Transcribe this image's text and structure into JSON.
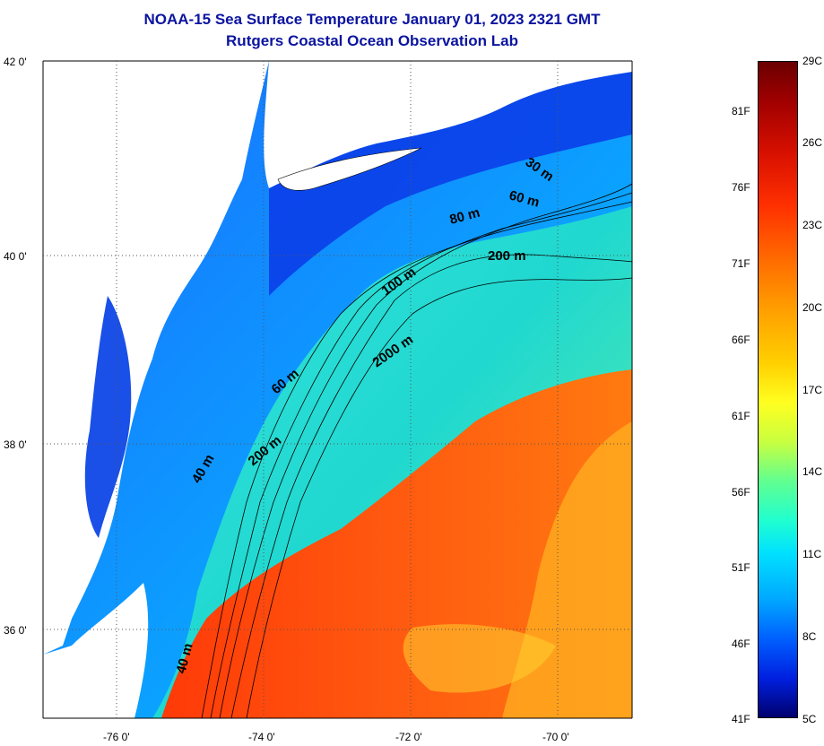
{
  "title": {
    "line1": "NOAA-15 Sea Surface Temperature January 01, 2023 2321 GMT",
    "line2": "Rutgers Coastal Ocean Observation Lab"
  },
  "axes": {
    "y_labels": [
      "42 0'",
      "40 0'",
      "38 0'",
      "36 0'"
    ],
    "x_labels": [
      "-76 0'",
      "-74 0'",
      "-72 0'",
      "-70 0'"
    ]
  },
  "contours": {
    "labels": [
      "30 m",
      "60 m",
      "80 m",
      "200 m",
      "100 m",
      "2000 m",
      "60 m",
      "200 m",
      "40 m",
      "40 m"
    ]
  },
  "colorbar": {
    "celsius": [
      "29C",
      "26C",
      "23C",
      "20C",
      "17C",
      "14C",
      "11C",
      "8C",
      "5C"
    ],
    "fahrenheit": [
      "81F",
      "76F",
      "71F",
      "66F",
      "61F",
      "56F",
      "51F",
      "46F",
      "41F"
    ]
  },
  "colors": {
    "title": "#0b14a0",
    "cold": "#0030e0",
    "shelf": "#00c8ff",
    "slope": "#30e0b0",
    "warm": "#ff6a00",
    "gulfstream": "#ff4a10",
    "land": "#ffffff"
  }
}
